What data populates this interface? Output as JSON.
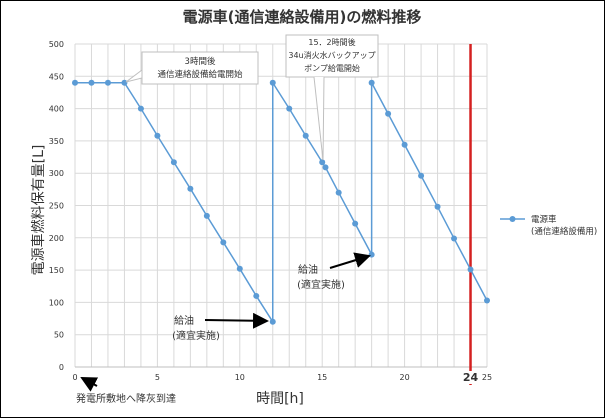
{
  "chart_data": {
    "type": "line",
    "title": "電源車(通信連絡設備用)の燃料推移",
    "xlabel": "時間[h]",
    "ylabel": "電源車燃料保有量[L]",
    "xlim": [
      0,
      25
    ],
    "ylim": [
      0,
      500
    ],
    "x_ticks": [
      0,
      5,
      10,
      15,
      20,
      25
    ],
    "x_ticks_labels": [
      "0",
      "5",
      "10",
      "15",
      "20",
      "25"
    ],
    "y_ticks": [
      0,
      50,
      100,
      150,
      200,
      250,
      300,
      350,
      400,
      450,
      500
    ],
    "y_ticks_labels": [
      "0",
      "50",
      "100",
      "150",
      "200",
      "250",
      "300",
      "350",
      "400",
      "450",
      "500"
    ],
    "grid": true,
    "legend_position": "right",
    "series": [
      {
        "name": "電源車\n(通信連絡設備用)",
        "color": "#5b9bd5",
        "x": [
          0,
          1,
          2,
          3,
          4,
          5,
          6,
          7,
          8,
          9,
          10,
          11,
          12,
          12,
          13,
          14,
          15,
          15.2,
          16,
          17,
          18,
          18,
          19,
          20,
          21,
          22,
          23,
          24,
          25
        ],
        "y": [
          440,
          440,
          440,
          440,
          400,
          358,
          317,
          276,
          234,
          193,
          152,
          110,
          70,
          440,
          400,
          358,
          317,
          309,
          270,
          222,
          174,
          440,
          392,
          344,
          296,
          248,
          199,
          151,
          103
        ]
      }
    ],
    "reference_line": {
      "x": 24,
      "label": "24",
      "color": "#d42020"
    },
    "annotations": [
      {
        "text": "3時間後\n通信連絡設備給電開始",
        "x": 3,
        "y": 440
      },
      {
        "text": "15．2時間後\n34u消火水バックアップ\nポンプ給電開始",
        "x": 15.2,
        "y": 309
      },
      {
        "text": "給油\n(適宜実施)",
        "x": 12,
        "y": 70
      },
      {
        "text": "給油\n(適宜実施)",
        "x": 18,
        "y": 174
      },
      {
        "text": "発電所敷地へ降灰到達",
        "x": 0,
        "y": 0
      }
    ]
  }
}
